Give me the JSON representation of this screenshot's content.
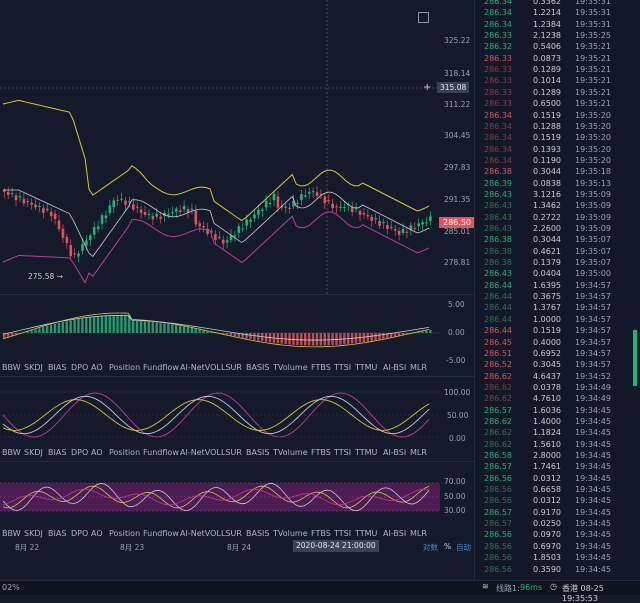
{
  "price_axis": {
    "labels": [
      "325.22",
      "318.14",
      "311.22",
      "304.45",
      "297.83",
      "291.35",
      "285.01",
      "278.81"
    ],
    "current_price": "286.50",
    "crosshair_price": "315.08",
    "low_marker": "275.58 →"
  },
  "macd_axis": {
    "labels": [
      "5.00",
      "0.00",
      "-5.00"
    ]
  },
  "kdj_axis": {
    "labels": [
      "100.00",
      "50.00",
      "0.00"
    ]
  },
  "rsi_axis": {
    "labels": [
      "70.00",
      "50.00",
      "30.00"
    ]
  },
  "indicator_tabs": [
    "BBW",
    "SKDJ",
    "BIAS",
    "DPO",
    "AO",
    "Position",
    "Fundflow",
    "AI-NetVOL",
    "LSUR",
    "BASIS",
    "TVolume",
    "FTBS",
    "TTSI",
    "TTMU",
    "AI-BSI",
    "MLR"
  ],
  "time_axis": {
    "labels": [
      "8月 22",
      "8月 23",
      "8月 24"
    ],
    "crosshair_time": "2020-08-24 21:00:00",
    "controls": [
      "对数",
      "%",
      "自动"
    ]
  },
  "status": {
    "left": "02%",
    "connection": "线路1:",
    "latency": "96ms",
    "region_time": "香港 08-25 19:35:53"
  },
  "trades": [
    {
      "p": "286.34",
      "v": "0.3362",
      "t": "19:35:31",
      "c": "up"
    },
    {
      "p": "286.34",
      "v": "1.2214",
      "t": "19:35:31",
      "c": "up"
    },
    {
      "p": "286.34",
      "v": "1.2384",
      "t": "19:35:31",
      "c": "up"
    },
    {
      "p": "286.33",
      "v": "2.1238",
      "t": "19:35:25",
      "c": "up"
    },
    {
      "p": "286.32",
      "v": "0.5406",
      "t": "19:35:21",
      "c": "up"
    },
    {
      "p": "286.33",
      "v": "0.0873",
      "t": "19:35:21",
      "c": "down"
    },
    {
      "p": "286.33",
      "v": "0.1289",
      "t": "19:35:21",
      "c": "fd"
    },
    {
      "p": "286.33",
      "v": "0.1014",
      "t": "19:35:21",
      "c": "fd"
    },
    {
      "p": "286.33",
      "v": "0.1289",
      "t": "19:35:21",
      "c": "fd"
    },
    {
      "p": "286.33",
      "v": "0.6500",
      "t": "19:35:21",
      "c": "fd"
    },
    {
      "p": "286.34",
      "v": "0.1519",
      "t": "19:35:20",
      "c": "down"
    },
    {
      "p": "286.34",
      "v": "0.1288",
      "t": "19:35:20",
      "c": "fd"
    },
    {
      "p": "286.34",
      "v": "0.1519",
      "t": "19:35:20",
      "c": "fd"
    },
    {
      "p": "286.34",
      "v": "0.1393",
      "t": "19:35:20",
      "c": "fd"
    },
    {
      "p": "286.34",
      "v": "0.1190",
      "t": "19:35:20",
      "c": "fd"
    },
    {
      "p": "286.38",
      "v": "0.3044",
      "t": "19:35:18",
      "c": "down"
    },
    {
      "p": "286.39",
      "v": "0.0838",
      "t": "19:35:13",
      "c": "up"
    },
    {
      "p": "286.43",
      "v": "3.1216",
      "t": "19:35:09",
      "c": "up"
    },
    {
      "p": "286.43",
      "v": "1.3462",
      "t": "19:35:09",
      "c": "fu"
    },
    {
      "p": "286.43",
      "v": "0.2722",
      "t": "19:35:09",
      "c": "fu"
    },
    {
      "p": "286.43",
      "v": "2.2600",
      "t": "19:35:09",
      "c": "fu"
    },
    {
      "p": "286.38",
      "v": "0.3044",
      "t": "19:35:07",
      "c": "up"
    },
    {
      "p": "286.38",
      "v": "0.4621",
      "t": "19:35:07",
      "c": "fu"
    },
    {
      "p": "286.38",
      "v": "0.1379",
      "t": "19:35:07",
      "c": "fu"
    },
    {
      "p": "286.43",
      "v": "0.0404",
      "t": "19:35:00",
      "c": "up"
    },
    {
      "p": "286.44",
      "v": "1.6395",
      "t": "19:34:57",
      "c": "up"
    },
    {
      "p": "286.44",
      "v": "0.3675",
      "t": "19:34:57",
      "c": "fu"
    },
    {
      "p": "286.44",
      "v": "1.3767",
      "t": "19:34:57",
      "c": "fu"
    },
    {
      "p": "286.44",
      "v": "1.0000",
      "t": "19:34:57",
      "c": "fu"
    },
    {
      "p": "286.44",
      "v": "0.1519",
      "t": "19:34:57",
      "c": "down"
    },
    {
      "p": "286.45",
      "v": "0.4000",
      "t": "19:34:57",
      "c": "down"
    },
    {
      "p": "286.51",
      "v": "0.6952",
      "t": "19:34:57",
      "c": "down"
    },
    {
      "p": "286.52",
      "v": "0.3045",
      "t": "19:34:57",
      "c": "down"
    },
    {
      "p": "286.62",
      "v": "4.6437",
      "t": "19:34:52",
      "c": "down"
    },
    {
      "p": "286.62",
      "v": "0.0378",
      "t": "19:34:49",
      "c": "fd"
    },
    {
      "p": "286.62",
      "v": "4.7610",
      "t": "19:34:49",
      "c": "fd"
    },
    {
      "p": "286.57",
      "v": "1.6036",
      "t": "19:34:45",
      "c": "up"
    },
    {
      "p": "286.62",
      "v": "1.4000",
      "t": "19:34:45",
      "c": "up"
    },
    {
      "p": "286.62",
      "v": "1.1824",
      "t": "19:34:45",
      "c": "fu"
    },
    {
      "p": "286.62",
      "v": "1.5610",
      "t": "19:34:45",
      "c": "fu"
    },
    {
      "p": "286.58",
      "v": "2.8000",
      "t": "19:34:45",
      "c": "up"
    },
    {
      "p": "286.57",
      "v": "1.7461",
      "t": "19:34:45",
      "c": "up"
    },
    {
      "p": "286.56",
      "v": "0.0312",
      "t": "19:34:45",
      "c": "up"
    },
    {
      "p": "286.56",
      "v": "0.6658",
      "t": "19:34:45",
      "c": "fu"
    },
    {
      "p": "286.56",
      "v": "0.0312",
      "t": "19:34:45",
      "c": "fu"
    },
    {
      "p": "286.57",
      "v": "0.9170",
      "t": "19:34:45",
      "c": "up"
    },
    {
      "p": "286.57",
      "v": "0.0250",
      "t": "19:34:45",
      "c": "fu"
    },
    {
      "p": "286.56",
      "v": "0.0970",
      "t": "19:34:45",
      "c": "up"
    },
    {
      "p": "286.56",
      "v": "0.6970",
      "t": "19:34:45",
      "c": "fu"
    },
    {
      "p": "286.56",
      "v": "1.8503",
      "t": "19:34:45",
      "c": "fu"
    },
    {
      "p": "286.56",
      "v": "0.3590",
      "t": "19:34:45",
      "c": "fu"
    }
  ],
  "colors": {
    "up": "#26b37a",
    "down": "#e0545c",
    "ma_upper": "#d4c83c",
    "ma_mid": "#c8ccd8",
    "ma_lower": "#c23a9c"
  }
}
